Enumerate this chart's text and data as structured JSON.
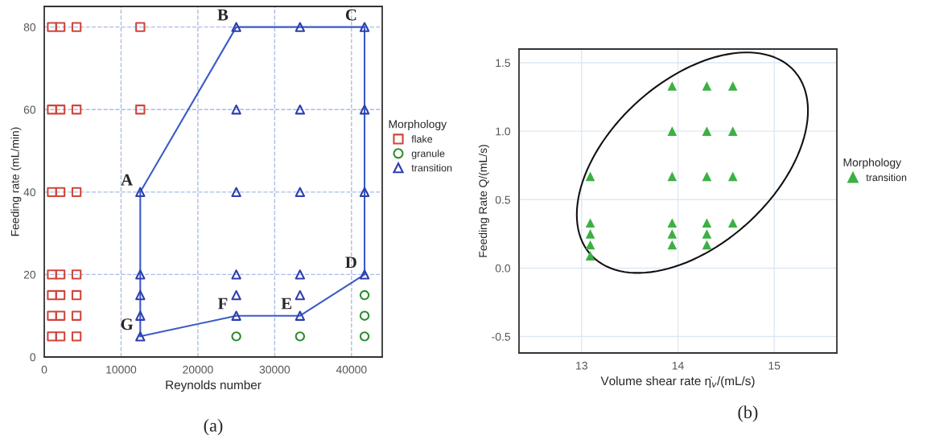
{
  "chart_data": [
    {
      "type": "scatter",
      "xlabel": "Reynolds number",
      "ylabel": "Feeding rate (mL/min)",
      "legend_title": "Morphology",
      "legend": "right",
      "grid": true,
      "line_style": "solid",
      "xlim": [
        0,
        44000
      ],
      "xticks": [
        0,
        10000,
        20000,
        30000,
        40000
      ],
      "ylim": [
        0,
        85
      ],
      "yticks": [
        0,
        20,
        40,
        60,
        80
      ],
      "series": [
        {
          "name": "flake",
          "color": "#d0463c",
          "marker": "square",
          "x": [
            1000,
            2100,
            4200,
            1000,
            2100,
            4200,
            1000,
            2100,
            4200,
            1000,
            2100,
            4200,
            1000,
            2100,
            4200,
            1000,
            2100,
            4200,
            12500,
            1000,
            2100,
            4200,
            12500
          ],
          "values": [
            5,
            5,
            5,
            10,
            10,
            10,
            15,
            15,
            15,
            20,
            20,
            20,
            40,
            40,
            40,
            60,
            60,
            60,
            60,
            80,
            80,
            80,
            80
          ]
        },
        {
          "name": "granule",
          "color": "#2e8b2e",
          "marker": "circle",
          "x": [
            25000,
            33300,
            41700,
            41700,
            41700
          ],
          "values": [
            5,
            5,
            5,
            10,
            15
          ]
        },
        {
          "name": "transition",
          "color": "#2b3fae",
          "marker": "triangle",
          "x": [
            12500,
            12500,
            12500,
            12500,
            12500,
            25000,
            25000,
            25000,
            25000,
            25000,
            25000,
            33300,
            33300,
            33300,
            33300,
            33300,
            33300,
            41700,
            41700,
            41700,
            41700
          ],
          "values": [
            5,
            10,
            15,
            20,
            40,
            10,
            15,
            20,
            40,
            60,
            80,
            10,
            15,
            20,
            40,
            60,
            80,
            20,
            40,
            60,
            80
          ]
        },
        {
          "type": "line",
          "color": "#3a5bc7",
          "marker": "none",
          "x": [
            12500,
            25000,
            41700
          ],
          "values": [
            40,
            80,
            80
          ]
        },
        {
          "type": "line",
          "color": "#3a5bc7",
          "marker": "none",
          "x": [
            41700,
            41700
          ],
          "values": [
            80,
            20
          ]
        },
        {
          "type": "line",
          "color": "#3a5bc7",
          "marker": "none",
          "x": [
            41700,
            33300,
            25000,
            12500
          ],
          "values": [
            20,
            10,
            10,
            5
          ]
        },
        {
          "type": "line",
          "color": "#3a5bc7",
          "marker": "none",
          "x": [
            12500,
            12500
          ],
          "values": [
            5,
            40
          ]
        }
      ],
      "annotations": [
        {
          "text": "A",
          "x": 12500,
          "y": 40
        },
        {
          "text": "B",
          "x": 25000,
          "y": 80
        },
        {
          "text": "C",
          "x": 41700,
          "y": 80
        },
        {
          "text": "D",
          "x": 41700,
          "y": 20
        },
        {
          "text": "E",
          "x": 33300,
          "y": 10
        },
        {
          "text": "F",
          "x": 25000,
          "y": 10
        },
        {
          "text": "G",
          "x": 12500,
          "y": 5
        },
        "(a)"
      ]
    },
    {
      "type": "scatter",
      "xlabel": "Volume shear rate η̇$_{v}$/(mL/s)",
      "ylabel": "Feeding Rate Q/(mL/s)",
      "legend_title": "Morphology",
      "legend": "right",
      "grid": true,
      "xlim": [
        12.35,
        15.65
      ],
      "xticks": [
        13,
        14,
        15
      ],
      "ylim": [
        -0.62,
        1.6
      ],
      "yticks": [
        {
          "value": -0.5,
          "label": "-0.5"
        },
        {
          "value": 0,
          "label": "0.0"
        },
        {
          "value": 0.5,
          "label": "0.5"
        },
        {
          "value": 1,
          "label": "1.0"
        },
        {
          "value": 1.5,
          "label": "1.5"
        }
      ],
      "series": [
        {
          "name": "transition",
          "color": "#3cb043",
          "marker": "triangle",
          "x": [
            13.09,
            13.09,
            13.09,
            13.09,
            13.09,
            13.94,
            13.94,
            13.94,
            13.94,
            13.94,
            13.94,
            14.3,
            14.3,
            14.3,
            14.3,
            14.3,
            14.3,
            14.57,
            14.57,
            14.57,
            14.57
          ],
          "values": [
            0.67,
            0.33,
            0.25,
            0.17,
            0.09,
            1.33,
            1.0,
            0.67,
            0.33,
            0.25,
            0.17,
            1.33,
            1.0,
            0.67,
            0.33,
            0.25,
            0.17,
            1.33,
            1.0,
            0.67,
            0.33
          ]
        }
      ],
      "annotations": [
        "(b)"
      ]
    }
  ]
}
